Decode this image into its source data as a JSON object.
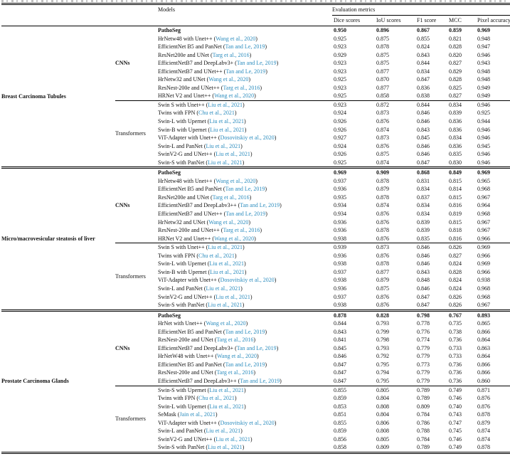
{
  "link_color": "#2b8cbe",
  "table": {
    "header": {
      "models_label": "Models",
      "metrics_label": "Evaluation metrics",
      "metric_columns": [
        "Dice scores",
        "IoU scores",
        "F1 score",
        "MCC",
        "Pixel accuracy"
      ]
    },
    "groups": [
      {
        "name": "Breast Carcinoma Tubules",
        "blocks": [
          {
            "arch": "CNNs",
            "rows": [
              {
                "model": "PathoSeg",
                "citation": null,
                "bold": true,
                "values": [
                  "0.950",
                  "0.896",
                  "0.867",
                  "0.859",
                  "0.969"
                ]
              },
              {
                "model": "HrNetw48 with Unet++",
                "citation": "Wang et al., 2020",
                "bold": false,
                "values": [
                  "0.925",
                  "0.875",
                  "0.855",
                  "0.821",
                  "0.948"
                ]
              },
              {
                "model": "EfficientNet B5 and PanNet",
                "citation": "Tan and Le, 2019",
                "bold": false,
                "values": [
                  "0.923",
                  "0.878",
                  "0.824",
                  "0.828",
                  "0.947"
                ]
              },
              {
                "model": "ResNet200e and UNet",
                "citation": "Targ et al., 2016",
                "bold": false,
                "values": [
                  "0.929",
                  "0.875",
                  "0.843",
                  "0.820",
                  "0.946"
                ]
              },
              {
                "model": "EfficientNetB7 and DeepLabv3+",
                "citation": "Tan and Le, 2019",
                "bold": false,
                "values": [
                  "0.923",
                  "0.875",
                  "0.844",
                  "0.827",
                  "0.943"
                ]
              },
              {
                "model": "EfficientNetB7 and UNet++",
                "citation": "Tan and Le, 2019",
                "bold": false,
                "values": [
                  "0.923",
                  "0.877",
                  "0.834",
                  "0.829",
                  "0.948"
                ]
              },
              {
                "model": "HrNetw32 and UNet",
                "citation": "Wang et al., 2020",
                "bold": false,
                "values": [
                  "0.925",
                  "0.870",
                  "0.847",
                  "0.828",
                  "0.948"
                ]
              },
              {
                "model": "ResNest-200e and UNet++",
                "citation": "Targ et al., 2016",
                "bold": false,
                "values": [
                  "0.923",
                  "0.877",
                  "0.836",
                  "0.825",
                  "0.949"
                ]
              },
              {
                "model": "HRNet V2 and Unet++",
                "citation": "Wang et al., 2020",
                "bold": false,
                "values": [
                  "0.925",
                  "0.858",
                  "0.838",
                  "0.827",
                  "0.949"
                ]
              }
            ]
          },
          {
            "arch": "Transformers",
            "rows": [
              {
                "model": "Swin S with Unet++",
                "citation": "Liu et al., 2021",
                "bold": false,
                "values": [
                  "0.923",
                  "0.872",
                  "0.844",
                  "0.834",
                  "0.946"
                ]
              },
              {
                "model": "Twins with FPN",
                "citation": "Chu et al., 2021",
                "bold": false,
                "values": [
                  "0.924",
                  "0.873",
                  "0.846",
                  "0.839",
                  "0.925"
                ]
              },
              {
                "model": "Swin-L with Upernet",
                "citation": "Liu et al., 2021",
                "bold": false,
                "values": [
                  "0.926",
                  "0.876",
                  "0.846",
                  "0.836",
                  "0.944"
                ]
              },
              {
                "model": "Swin-B with Upernet",
                "citation": "Liu et al., 2021",
                "bold": false,
                "values": [
                  "0.926",
                  "0.874",
                  "0.843",
                  "0.836",
                  "0.946"
                ]
              },
              {
                "model": "ViT-Adapter with Unet++",
                "citation": "Dosovitskiy et al., 2020",
                "bold": false,
                "values": [
                  "0.927",
                  "0.873",
                  "0.845",
                  "0.834",
                  "0.946"
                ]
              },
              {
                "model": "Swin-L and PanNet",
                "citation": "Liu et al., 2021",
                "bold": false,
                "values": [
                  "0.924",
                  "0.876",
                  "0.846",
                  "0.836",
                  "0.945"
                ]
              },
              {
                "model": "SwinV2-G and UNet++",
                "citation": "Liu et al., 2021",
                "bold": false,
                "values": [
                  "0.926",
                  "0.875",
                  "0.846",
                  "0.835",
                  "0.946"
                ]
              },
              {
                "model": "Swin-S with PanNet",
                "citation": "Liu et al., 2021",
                "bold": false,
                "values": [
                  "0.925",
                  "0.874",
                  "0.847",
                  "0.830",
                  "0.946"
                ]
              }
            ]
          }
        ]
      },
      {
        "name": "Micro/macrovesicular steatosis of liver",
        "blocks": [
          {
            "arch": "CNNs",
            "rows": [
              {
                "model": "PathoSeg",
                "citation": null,
                "bold": true,
                "values": [
                  "0.969",
                  "0.909",
                  "0.868",
                  "0.849",
                  "0.969"
                ]
              },
              {
                "model": "HrNetw48 with Unet++",
                "citation": "Wang et al., 2020",
                "bold": false,
                "values": [
                  "0.937",
                  "0.878",
                  "0.831",
                  "0.815",
                  "0.965"
                ]
              },
              {
                "model": "EfficientNet B5 and PanNet",
                "citation": "Tan and Le, 2019",
                "bold": false,
                "values": [
                  "0.936",
                  "0.879",
                  "0.834",
                  "0.814",
                  "0.968"
                ]
              },
              {
                "model": "ResNet200e and UNet",
                "citation": "Targ et al., 2016",
                "bold": false,
                "values": [
                  "0.935",
                  "0.878",
                  "0.837",
                  "0.815",
                  "0.967"
                ]
              },
              {
                "model": "EfficientNetB7 and DeepLabv3++",
                "citation": "Tan and Le, 2019",
                "bold": false,
                "values": [
                  "0.934",
                  "0.874",
                  "0.834",
                  "0.816",
                  "0.964"
                ]
              },
              {
                "model": "EfficientNetB7 and UNet++",
                "citation": "Tan and Le, 2019",
                "bold": false,
                "values": [
                  "0.934",
                  "0.876",
                  "0.834",
                  "0.819",
                  "0.968"
                ]
              },
              {
                "model": "HrNetw32 and UNet",
                "citation": "Wang et al., 2020",
                "bold": false,
                "values": [
                  "0.936",
                  "0.876",
                  "0.839",
                  "0.815",
                  "0.967"
                ]
              },
              {
                "model": "ResNest-200e and UNet++",
                "citation": "Targ et al., 2016",
                "bold": false,
                "values": [
                  "0.936",
                  "0.878",
                  "0.839",
                  "0.818",
                  "0.967"
                ]
              },
              {
                "model": "HRNet V2 and Unet++",
                "citation": "Wang et al., 2020",
                "bold": false,
                "values": [
                  "0.938",
                  "0.876",
                  "0.835",
                  "0.816",
                  "0.966"
                ]
              }
            ]
          },
          {
            "arch": "Transformers",
            "rows": [
              {
                "model": "Swin S with Unet++",
                "citation": "Liu et al., 2021",
                "bold": false,
                "values": [
                  "0.939",
                  "0.873",
                  "0.846",
                  "0.826",
                  "0.969"
                ]
              },
              {
                "model": "Twins with FPN",
                "citation": "Chu et al., 2021",
                "bold": false,
                "values": [
                  "0.936",
                  "0.876",
                  "0.846",
                  "0.827",
                  "0.966"
                ]
              },
              {
                "model": "Swin-L with Upernet",
                "citation": "Liu et al., 2021",
                "bold": false,
                "values": [
                  "0.938",
                  "0.878",
                  "0.846",
                  "0.824",
                  "0.969"
                ]
              },
              {
                "model": "Swin-B with Upernet",
                "citation": "Liu et al., 2021",
                "bold": false,
                "values": [
                  "0.937",
                  "0.877",
                  "0.843",
                  "0.828",
                  "0.966"
                ]
              },
              {
                "model": "ViT-Adapter with Unet++",
                "citation": "Dosovitskiy et al., 2020",
                "bold": false,
                "values": [
                  "0.938",
                  "0.879",
                  "0.848",
                  "0.824",
                  "0.938"
                ]
              },
              {
                "model": "Swin-L and PanNet",
                "citation": "Liu et al., 2021",
                "bold": false,
                "values": [
                  "0.936",
                  "0.875",
                  "0.846",
                  "0.824",
                  "0.968"
                ]
              },
              {
                "model": "SwinV2-G and UNet++",
                "citation": "Liu et al., 2021",
                "bold": false,
                "values": [
                  "0.937",
                  "0.876",
                  "0.847",
                  "0.826",
                  "0.968"
                ]
              },
              {
                "model": "Swin-S with PanNet",
                "citation": "Liu et al., 2021",
                "bold": false,
                "values": [
                  "0.938",
                  "0.876",
                  "0.847",
                  "0.826",
                  "0.967"
                ]
              }
            ]
          }
        ]
      },
      {
        "name": "Prostate Carcinoma Glands",
        "blocks": [
          {
            "arch": "CNNs",
            "rows": [
              {
                "model": "PathoSeg",
                "citation": null,
                "bold": true,
                "values": [
                  "0.878",
                  "0.828",
                  "0.798",
                  "0.767",
                  "0.893"
                ]
              },
              {
                "model": "HrNet with Unet++",
                "citation": "Wang et al., 2020",
                "bold": false,
                "values": [
                  "0.844",
                  "0.793",
                  "0.778",
                  "0.735",
                  "0.865"
                ]
              },
              {
                "model": "EfficientNet B5 and PanNet",
                "citation": "Tan and Le, 2019",
                "bold": false,
                "values": [
                  "0.843",
                  "0.799",
                  "0.776",
                  "0.738",
                  "0.866"
                ]
              },
              {
                "model": "ResNest-200e and UNet",
                "citation": "Targ et al., 2016",
                "bold": false,
                "values": [
                  "0.841",
                  "0.798",
                  "0.774",
                  "0.736",
                  "0.864"
                ]
              },
              {
                "model": "EfficientNetB7 and DeepLabv3+",
                "citation": "Tan and Le, 2019",
                "bold": false,
                "values": [
                  "0.845",
                  "0.793",
                  "0.779",
                  "0.733",
                  "0.863"
                ]
              },
              {
                "model": "HrNetW48 with Unet++",
                "citation": "Wang et al., 2020",
                "bold": false,
                "values": [
                  "0.846",
                  "0.792",
                  "0.779",
                  "0.733",
                  "0.864"
                ]
              },
              {
                "model": "EfficientNet B5 and PanNet",
                "citation": "Tan and Le, 2019",
                "bold": false,
                "values": [
                  "0.847",
                  "0.795",
                  "0.773",
                  "0.736",
                  "0.866"
                ]
              },
              {
                "model": "ResNest-200e and UNet",
                "citation": "Targ et al., 2016",
                "bold": false,
                "values": [
                  "0.847",
                  "0.794",
                  "0.779",
                  "0.736",
                  "0.866"
                ]
              },
              {
                "model": "EfficientNetB7 and DeepLabv3++",
                "citation": "Tan and Le, 2019",
                "bold": false,
                "values": [
                  "0.847",
                  "0.795",
                  "0.779",
                  "0.736",
                  "0.860"
                ]
              }
            ]
          },
          {
            "arch": "Transformers",
            "rows": [
              {
                "model": "Swin-S with Upernet",
                "citation": "Liu et al., 2021",
                "bold": false,
                "values": [
                  "0.855",
                  "0.805",
                  "0.789",
                  "0.749",
                  "0.871"
                ]
              },
              {
                "model": "Twins with FPN",
                "citation": "Chu et al., 2021",
                "bold": false,
                "values": [
                  "0.859",
                  "0.804",
                  "0.789",
                  "0.746",
                  "0.876"
                ]
              },
              {
                "model": "Swin-L with Upernet",
                "citation": "Liu et al., 2021",
                "bold": false,
                "values": [
                  "0.853",
                  "0.808",
                  "0.809",
                  "0.740",
                  "0.876"
                ]
              },
              {
                "model": "SeMask",
                "citation": "Jain et al., 2021",
                "bold": false,
                "values": [
                  "0.851",
                  "0.804",
                  "0.784",
                  "0.743",
                  "0.878"
                ]
              },
              {
                "model": "ViT-Adapter with Unet++",
                "citation": "Dosovitskiy et al., 2020",
                "bold": false,
                "values": [
                  "0.855",
                  "0.806",
                  "0.786",
                  "0.747",
                  "0.879"
                ]
              },
              {
                "model": "Swin-L and PanNet",
                "citation": "Liu et al., 2021",
                "bold": false,
                "values": [
                  "0.859",
                  "0.808",
                  "0.788",
                  "0.745",
                  "0.874"
                ]
              },
              {
                "model": "SwinV2-G and UNet++",
                "citation": "Liu et al., 2021",
                "bold": false,
                "values": [
                  "0.856",
                  "0.805",
                  "0.784",
                  "0.746",
                  "0.874"
                ]
              },
              {
                "model": "Swin-S with PanNet",
                "citation": "Liu et al., 2021",
                "bold": false,
                "values": [
                  "0.858",
                  "0.809",
                  "0.789",
                  "0.749",
                  "0.878"
                ]
              }
            ]
          }
        ]
      }
    ]
  }
}
